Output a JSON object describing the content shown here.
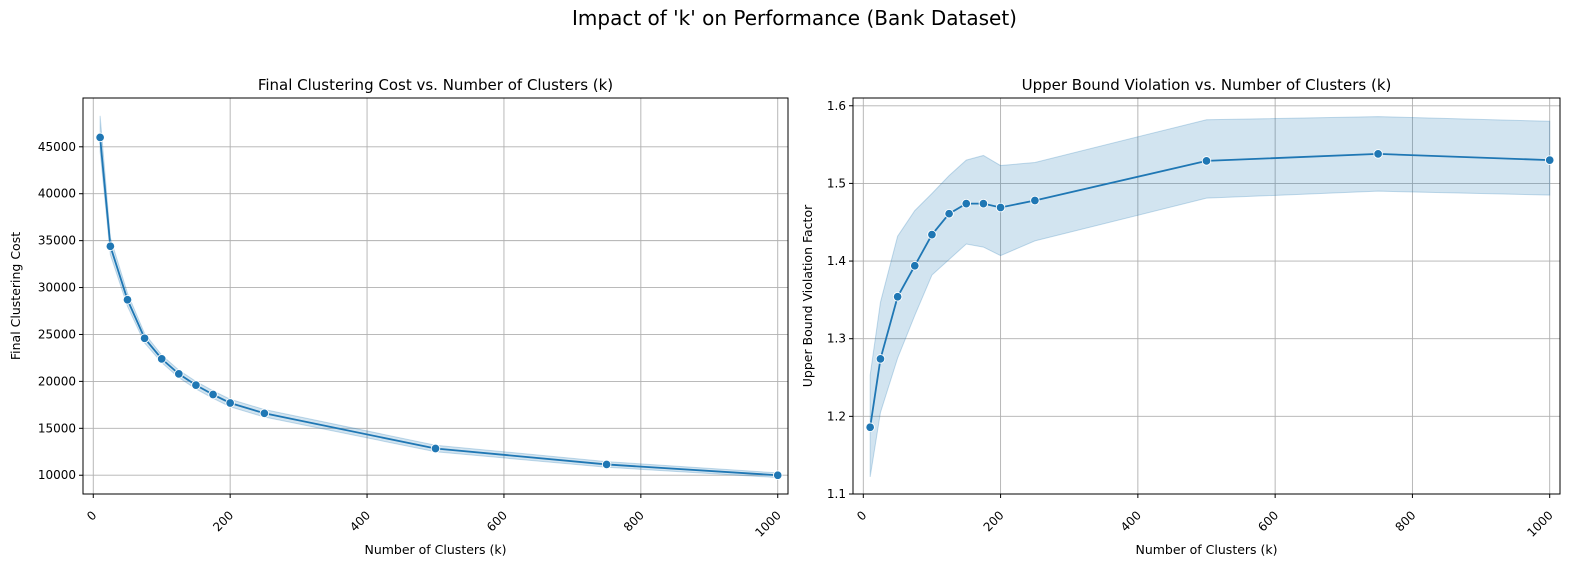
{
  "figure": {
    "suptitle": "Impact of 'k' on Performance (Bank Dataset)"
  },
  "colors": {
    "line": "#1f77b4",
    "band": "#1f77b4",
    "grid": "#b0b0b0",
    "marker_edge": "#ffffff"
  },
  "chart_data": [
    {
      "type": "line",
      "title": "Final Clustering Cost vs. Number of Clusters (k)",
      "xlabel": "Number of Clusters (k)",
      "ylabel": "Final Clustering Cost",
      "xlim": [
        -15,
        1015
      ],
      "ylim": [
        8000,
        50200
      ],
      "xticks": [
        0,
        200,
        400,
        600,
        800,
        1000
      ],
      "yticks": [
        10000,
        15000,
        20000,
        25000,
        30000,
        35000,
        40000,
        45000
      ],
      "grid": true,
      "x": [
        10,
        25,
        50,
        75,
        100,
        125,
        150,
        175,
        200,
        250,
        500,
        750,
        1000
      ],
      "y": [
        46000,
        34400,
        28700,
        24600,
        22400,
        20800,
        19600,
        18600,
        17700,
        16600,
        12850,
        11150,
        10000
      ],
      "y_lower": [
        44500,
        33500,
        28000,
        24100,
        22000,
        20400,
        19200,
        18200,
        17300,
        16200,
        12500,
        10850,
        9750
      ],
      "y_upper": [
        48300,
        35300,
        29400,
        25100,
        22800,
        21200,
        20000,
        19000,
        18100,
        17000,
        13200,
        11450,
        10250
      ]
    },
    {
      "type": "line",
      "title": "Upper Bound Violation vs. Number of Clusters (k)",
      "xlabel": "Number of Clusters (k)",
      "ylabel": "Upper Bound Violation Factor",
      "xlim": [
        -15,
        1015
      ],
      "ylim": [
        1.1,
        1.61
      ],
      "xticks": [
        0,
        200,
        400,
        600,
        800,
        1000
      ],
      "yticks": [
        1.1,
        1.2,
        1.3,
        1.4,
        1.5,
        1.6
      ],
      "grid": true,
      "x": [
        10,
        25,
        50,
        75,
        100,
        125,
        150,
        175,
        200,
        250,
        500,
        750,
        1000
      ],
      "y": [
        1.186,
        1.274,
        1.354,
        1.394,
        1.434,
        1.461,
        1.474,
        1.474,
        1.469,
        1.478,
        1.529,
        1.538,
        1.53
      ],
      "y_lower": [
        1.122,
        1.205,
        1.275,
        1.33,
        1.382,
        1.402,
        1.422,
        1.418,
        1.407,
        1.426,
        1.481,
        1.49,
        1.485
      ],
      "y_upper": [
        1.253,
        1.347,
        1.432,
        1.465,
        1.487,
        1.51,
        1.53,
        1.536,
        1.523,
        1.527,
        1.582,
        1.586,
        1.58
      ]
    }
  ]
}
